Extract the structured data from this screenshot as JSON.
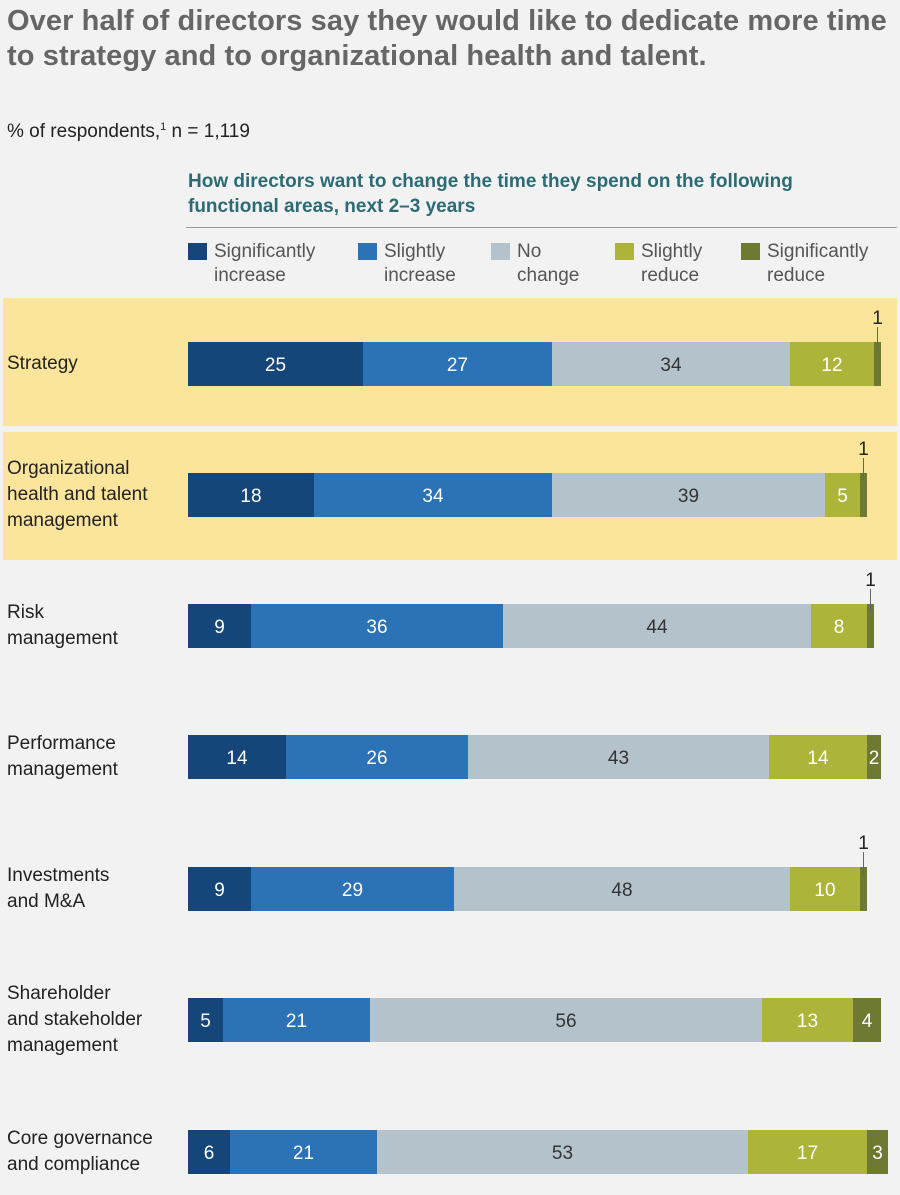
{
  "header": {
    "title": "Over half of directors say they would like to dedicate more time to strategy and to organizational health and talent.",
    "subtitle_prefix": "% of respondents,",
    "subtitle_footnote": "1",
    "subtitle_suffix": " n = 1,119"
  },
  "chart_data": {
    "type": "bar",
    "orientation": "horizontal",
    "stacked": true,
    "title": "How directors want to change the time they spend on the following functional areas, next 2–3 years",
    "xlabel": "",
    "ylabel": "",
    "xlim": [
      0,
      100
    ],
    "grid": false,
    "legend_position": "top",
    "categories": [
      "Strategy",
      "Organizational health and talent management",
      "Risk management",
      "Performance management",
      "Investments and M&A",
      "Shareholder and stakeholder management",
      "Core governance and compliance"
    ],
    "highlighted_categories": [
      "Strategy",
      "Organizational health and talent management"
    ],
    "series": [
      {
        "name": "Significantly increase",
        "color": "#15467a",
        "label_color": "#ffffff",
        "values": [
          25,
          18,
          9,
          14,
          9,
          5,
          6
        ]
      },
      {
        "name": "Slightly increase",
        "color": "#2c72b6",
        "label_color": "#ffffff",
        "values": [
          27,
          34,
          36,
          26,
          29,
          21,
          21
        ]
      },
      {
        "name": "No change",
        "color": "#b4c2cc",
        "label_color": "#333333",
        "values": [
          34,
          39,
          44,
          43,
          48,
          56,
          53
        ]
      },
      {
        "name": "Slightly reduce",
        "color": "#acb53a",
        "label_color": "#ffffff",
        "values": [
          12,
          5,
          8,
          14,
          10,
          13,
          17
        ]
      },
      {
        "name": "Significantly reduce",
        "color": "#6e7a32",
        "label_color": "#ffffff",
        "values": [
          1,
          1,
          1,
          2,
          1,
          4,
          3
        ]
      }
    ]
  },
  "legend": [
    {
      "line1": "Significantly",
      "line2": "increase"
    },
    {
      "line1": "Slightly",
      "line2": "increase"
    },
    {
      "line1": "No",
      "line2": "change"
    },
    {
      "line1": "Slightly",
      "line2": "reduce"
    },
    {
      "line1": "Significantly",
      "line2": "reduce"
    }
  ],
  "row_labels": [
    [
      "Strategy"
    ],
    [
      "Organizational",
      "health and talent",
      "management"
    ],
    [
      "Risk",
      "management"
    ],
    [
      "Performance",
      "management"
    ],
    [
      "Investments",
      "and M&A"
    ],
    [
      "Shareholder",
      "and stakeholder",
      "management"
    ],
    [
      "Core governance",
      "and compliance"
    ]
  ],
  "colors": {
    "highlight": "#fbe59b",
    "heading": "#2c6b74",
    "title": "#666666"
  }
}
